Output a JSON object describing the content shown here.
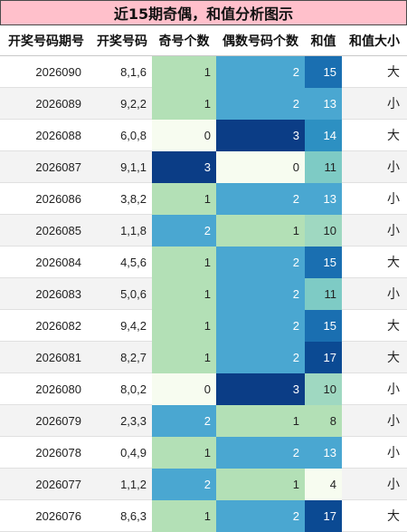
{
  "title": "近15期奇偶，和值分析图示",
  "headers": [
    "开奖号码期号",
    "开奖号码",
    "奇号个数",
    "偶数号码个数",
    "和值",
    "和值大小"
  ],
  "colors": {
    "odd_even_scale": {
      "0": "#f7fcf0",
      "1": "#b3e0b6",
      "2": "#4aa7d1",
      "3": "#0b3d86"
    },
    "sum_scale": {
      "4": "#f7fcf0",
      "8": "#b3e0b6",
      "10": "#9fd8c1",
      "11": "#7ecbc5",
      "13": "#4aa7d1",
      "14": "#2d90c2",
      "15": "#1a6fb1",
      "17": "#0b4a93"
    },
    "title_bg": "#ffc0cb"
  },
  "rows": [
    {
      "period": "2026090",
      "numbers": "8,1,6",
      "odd": 1,
      "even": 2,
      "sum": 15,
      "size": "大"
    },
    {
      "period": "2026089",
      "numbers": "9,2,2",
      "odd": 1,
      "even": 2,
      "sum": 13,
      "size": "小"
    },
    {
      "period": "2026088",
      "numbers": "6,0,8",
      "odd": 0,
      "even": 3,
      "sum": 14,
      "size": "大"
    },
    {
      "period": "2026087",
      "numbers": "9,1,1",
      "odd": 3,
      "even": 0,
      "sum": 11,
      "size": "小"
    },
    {
      "period": "2026086",
      "numbers": "3,8,2",
      "odd": 1,
      "even": 2,
      "sum": 13,
      "size": "小"
    },
    {
      "period": "2026085",
      "numbers": "1,1,8",
      "odd": 2,
      "even": 1,
      "sum": 10,
      "size": "小"
    },
    {
      "period": "2026084",
      "numbers": "4,5,6",
      "odd": 1,
      "even": 2,
      "sum": 15,
      "size": "大"
    },
    {
      "period": "2026083",
      "numbers": "5,0,6",
      "odd": 1,
      "even": 2,
      "sum": 11,
      "size": "小"
    },
    {
      "period": "2026082",
      "numbers": "9,4,2",
      "odd": 1,
      "even": 2,
      "sum": 15,
      "size": "大"
    },
    {
      "period": "2026081",
      "numbers": "8,2,7",
      "odd": 1,
      "even": 2,
      "sum": 17,
      "size": "大"
    },
    {
      "period": "2026080",
      "numbers": "8,0,2",
      "odd": 0,
      "even": 3,
      "sum": 10,
      "size": "小"
    },
    {
      "period": "2026079",
      "numbers": "2,3,3",
      "odd": 2,
      "even": 1,
      "sum": 8,
      "size": "小"
    },
    {
      "period": "2026078",
      "numbers": "0,4,9",
      "odd": 1,
      "even": 2,
      "sum": 13,
      "size": "小"
    },
    {
      "period": "2026077",
      "numbers": "1,1,2",
      "odd": 2,
      "even": 1,
      "sum": 4,
      "size": "小"
    },
    {
      "period": "2026076",
      "numbers": "8,6,3",
      "odd": 1,
      "even": 2,
      "sum": 17,
      "size": "大"
    }
  ]
}
